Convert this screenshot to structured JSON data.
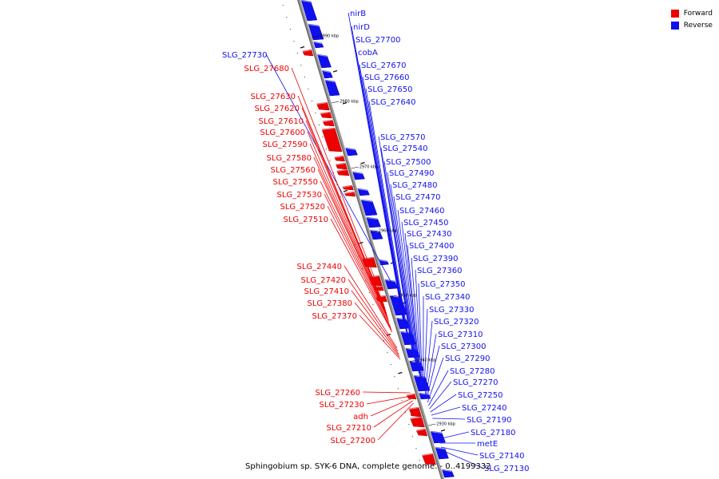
{
  "legend": [
    {
      "label": "Forward",
      "color": "#ee0000"
    },
    {
      "label": "Reverse",
      "color": "#1010ee"
    }
  ],
  "footer": "Sphingobium sp. SYK-6 DNA, complete genome. - 0..4199332",
  "ticks": [
    "2990 kbp",
    "2980 kbp",
    "2970 kbp",
    "2960 kbp",
    "2950 kbp",
    "2940 kbp",
    "2930 kbp"
  ],
  "genes_reverse": [
    "nirB",
    "nirD",
    "SLG_27700",
    "cobA",
    "SLG_27670",
    "SLG_27660",
    "SLG_27650",
    "SLG_27640",
    "SLG_27730",
    "SLG_27570",
    "SLG_27540",
    "SLG_27500",
    "SLG_27490",
    "SLG_27480",
    "SLG_27470",
    "SLG_27460",
    "SLG_27450",
    "SLG_27430",
    "SLG_27400",
    "SLG_27390",
    "SLG_27360",
    "SLG_27350",
    "SLG_27340",
    "SLG_27330",
    "SLG_27320",
    "SLG_27310",
    "SLG_27300",
    "SLG_27290",
    "SLG_27280",
    "SLG_27270",
    "SLG_27250",
    "SLG_27240",
    "SLG_27190",
    "SLG_27180",
    "metE",
    "SLG_27140",
    "SLG_27130"
  ],
  "genes_forward": [
    "SLG_27680",
    "SLG_27630",
    "SLG_27620",
    "SLG_27610",
    "SLG_27600",
    "SLG_27590",
    "SLG_27580",
    "SLG_27560",
    "SLG_27550",
    "SLG_27530",
    "SLG_27520",
    "SLG_27510",
    "SLG_27440",
    "SLG_27420",
    "SLG_27410",
    "SLG_27380",
    "SLG_27370",
    "SLG_27260",
    "SLG_27230",
    "adh",
    "SLG_27210",
    "SLG_27200"
  ]
}
